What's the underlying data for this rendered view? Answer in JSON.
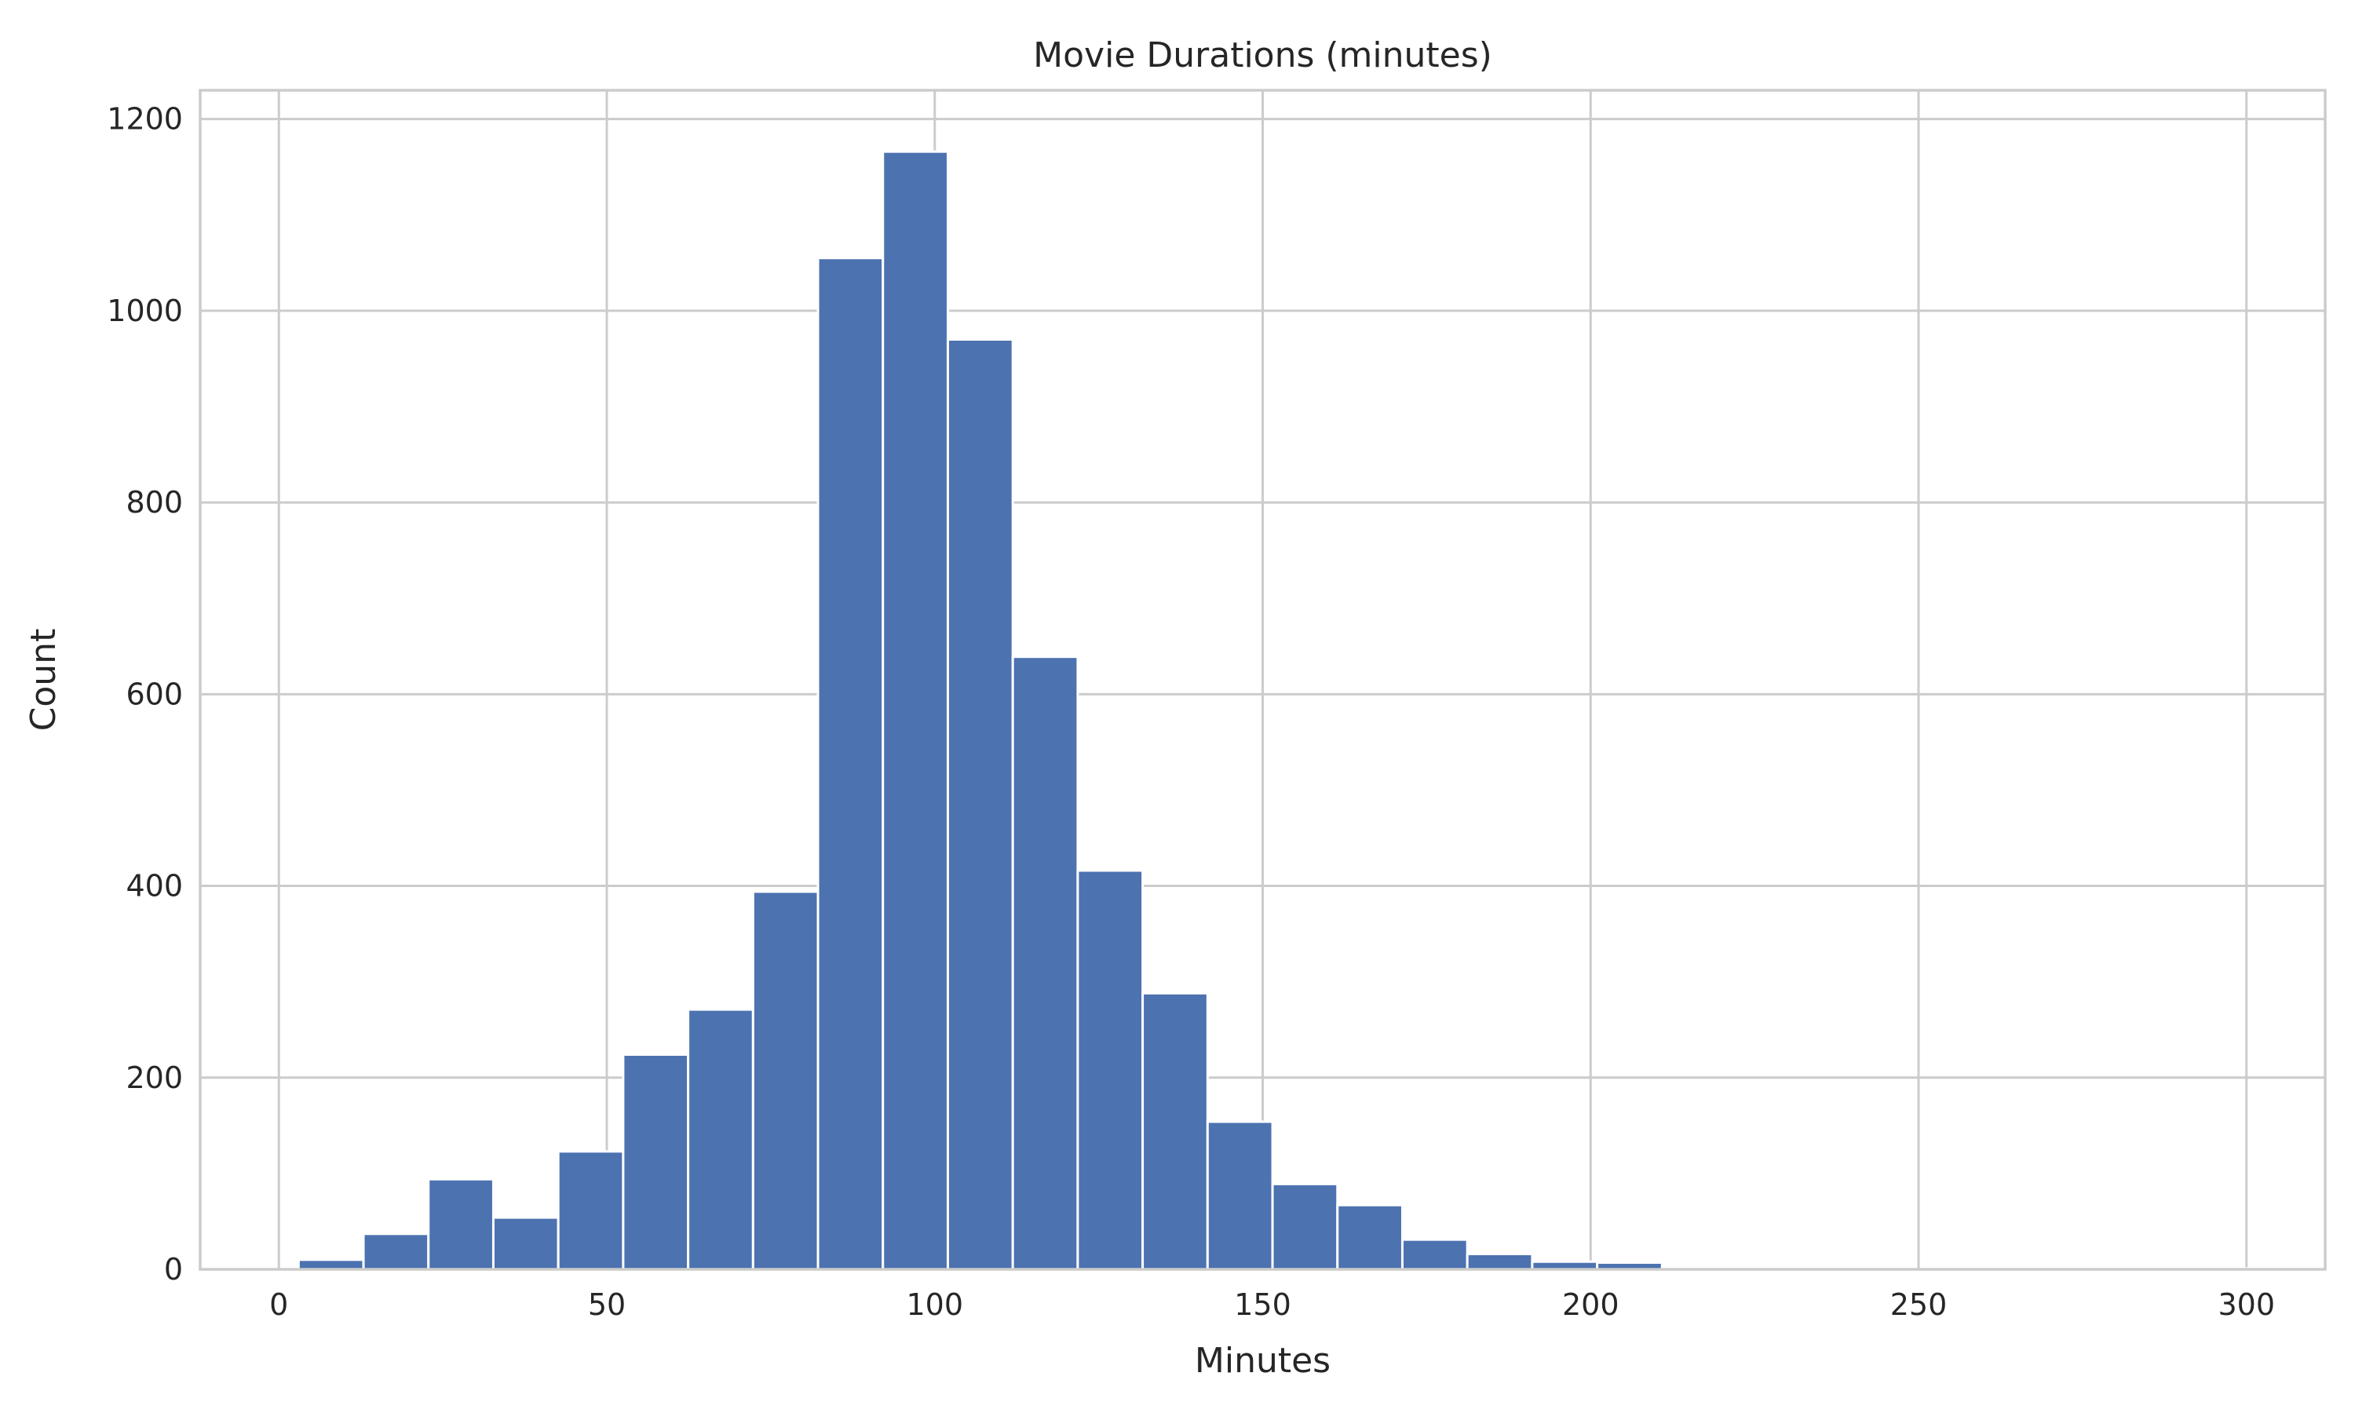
{
  "chart_data": {
    "type": "bar",
    "title": "Movie Durations (minutes)",
    "xlabel": "Minutes",
    "ylabel": "Count",
    "xlim": [
      -12,
      312
    ],
    "ylim": [
      0,
      1230
    ],
    "grid": true,
    "x_ticks": [
      0,
      50,
      100,
      150,
      200,
      250,
      300
    ],
    "y_ticks": [
      0,
      200,
      400,
      600,
      800,
      1000,
      1200
    ],
    "bin_edges": [
      3,
      12.9,
      22.8,
      32.7,
      42.6,
      52.5,
      62.4,
      72.3,
      82.2,
      92.1,
      102,
      111.9,
      121.8,
      131.7,
      141.6,
      151.5,
      161.4,
      171.3,
      181.2,
      191.1,
      201,
      210.9,
      220.8,
      230.7,
      240.6,
      250.5,
      260.4,
      270.3,
      280.2,
      290.1,
      300
    ],
    "values": [
      10,
      37,
      94,
      54,
      123,
      224,
      271,
      394,
      1055,
      1166,
      970,
      639,
      416,
      288,
      154,
      89,
      67,
      31,
      16,
      8,
      7,
      2,
      1,
      1,
      0,
      1,
      0,
      0,
      0,
      1
    ]
  }
}
